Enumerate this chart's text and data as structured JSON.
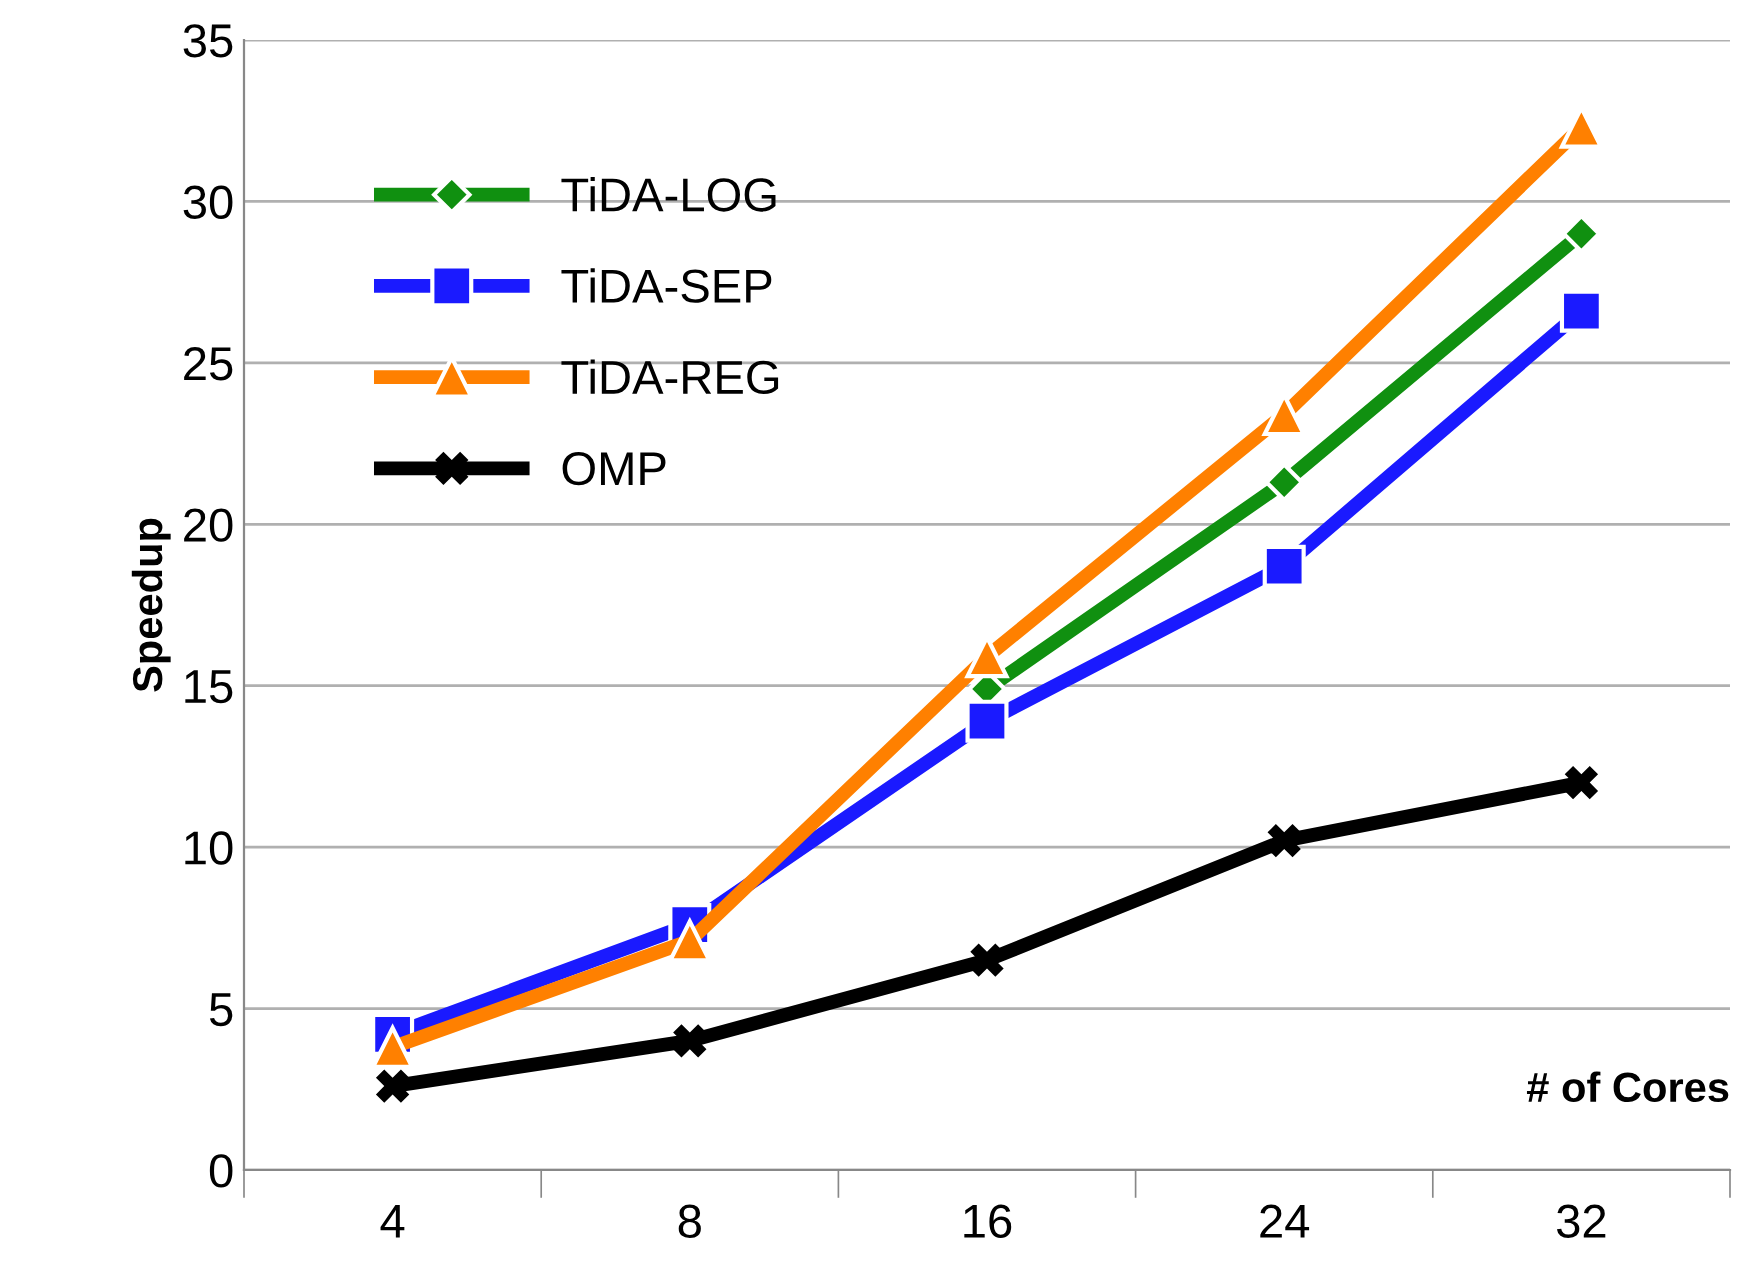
{
  "chart_data": {
    "type": "line",
    "xlabel": "# of Cores",
    "ylabel": "Speedup",
    "categories": [
      "4",
      "8",
      "16",
      "24",
      "32"
    ],
    "ylim": [
      0,
      35
    ],
    "yticks": [
      0,
      5,
      10,
      15,
      20,
      25,
      30,
      35
    ],
    "grid": "y",
    "legend": "top left",
    "line_style": "solid",
    "series": [
      {
        "name": "TiDA-LOG",
        "color": "#109010",
        "marker": "diamond",
        "values": [
          null,
          null,
          14.9,
          21.3,
          29.0
        ]
      },
      {
        "name": "TiDA-SEP",
        "color": "#1a1aff",
        "marker": "square",
        "values": [
          4.2,
          7.6,
          13.9,
          18.7,
          26.6
        ]
      },
      {
        "name": "TiDA-REG",
        "color": "#ff8000",
        "marker": "triangle",
        "values": [
          3.8,
          7.1,
          15.9,
          23.4,
          32.3
        ]
      },
      {
        "name": "OMP",
        "color": "#000000",
        "marker": "cross",
        "values": [
          2.6,
          4.0,
          6.5,
          10.2,
          12.0
        ]
      }
    ]
  }
}
